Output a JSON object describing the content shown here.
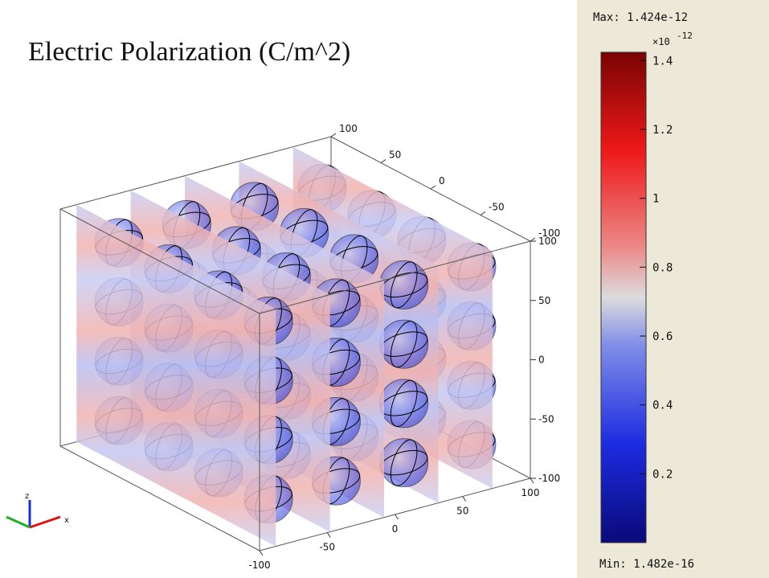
{
  "chart_data": {
    "type": "slice3d",
    "title": "Electric Polarization (C/m^2)",
    "xlim": [
      -100,
      100
    ],
    "xticks": [
      -100,
      -50,
      0,
      50,
      100
    ],
    "ylim": [
      -100,
      100
    ],
    "yticks": [
      -100,
      -50,
      0,
      50,
      100
    ],
    "zlim": [
      -100,
      100
    ],
    "zticks": [
      -100,
      -50,
      0,
      50,
      100
    ],
    "triad": {
      "z": "z",
      "x": "x"
    },
    "colorbar": {
      "max_label": "Max: 1.424e-12",
      "min_label": "Min: 1.482e-16",
      "exponent_base": "×10",
      "exponent_power": "-12",
      "clim": [
        0.0001482,
        1.424
      ],
      "ticks": [
        0.2,
        0.4,
        0.6,
        0.8,
        1,
        1.2,
        1.4
      ]
    }
  }
}
